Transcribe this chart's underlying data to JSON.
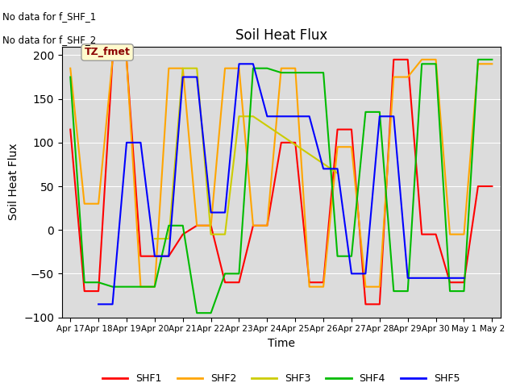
{
  "title": "Soil Heat Flux",
  "ylabel": "Soil Heat Flux",
  "xlabel": "Time",
  "ylim": [
    -100,
    210
  ],
  "yticks": [
    -100,
    -50,
    0,
    50,
    100,
    150,
    200
  ],
  "annotation_line1": "No data for f_SHF_1",
  "annotation_line2": "No data for f_SHF_2",
  "legend_box_text": "TZ_fmet",
  "colors": {
    "SHF1": "#FF0000",
    "SHF2": "#FFA500",
    "SHF3": "#CCCC00",
    "SHF4": "#00BB00",
    "SHF5": "#0000FF"
  },
  "xtick_labels": [
    "Apr 17",
    "Apr 18",
    "Apr 19",
    "Apr 20",
    "Apr 21",
    "Apr 22",
    "Apr 23",
    "Apr 24",
    "Apr 25",
    "Apr 26",
    "Apr 27",
    "Apr 28",
    "Apr 29",
    "Apr 30",
    "May 1",
    "May 2"
  ],
  "n_ticks": 16,
  "SHF1_x": [
    0,
    0.5,
    1,
    1.5,
    2,
    2.5,
    3,
    3.5,
    4,
    4.5,
    5,
    5.5,
    6,
    6.5,
    7,
    7.5,
    8,
    8.5,
    9,
    9.5,
    10,
    10.5,
    11,
    11.5,
    12,
    12.5,
    13,
    13.5,
    14,
    14.5,
    15
  ],
  "SHF1_y": [
    115,
    -70,
    -70,
    195,
    195,
    -30,
    -30,
    -30,
    -5,
    5,
    5,
    -60,
    -60,
    5,
    5,
    100,
    100,
    -60,
    -60,
    115,
    115,
    -85,
    -85,
    195,
    195,
    -5,
    -5,
    -60,
    -60,
    50,
    50
  ],
  "SHF2_x": [
    0,
    0.5,
    1,
    1.5,
    2,
    2.5,
    3,
    3.5,
    4,
    4.5,
    5,
    5.5,
    6,
    6.5,
    7,
    7.5,
    8,
    8.5,
    9,
    9.5,
    10,
    10.5,
    11,
    11.5,
    12,
    12.5,
    13,
    13.5,
    14,
    14.5,
    15
  ],
  "SHF2_y": [
    185,
    30,
    30,
    195,
    195,
    -65,
    -65,
    185,
    185,
    5,
    5,
    185,
    185,
    5,
    5,
    185,
    185,
    -65,
    -65,
    95,
    95,
    -65,
    -65,
    175,
    175,
    195,
    195,
    -5,
    -5,
    190,
    190
  ],
  "SHF3_x": [
    3,
    3.5,
    4,
    4.5,
    5,
    5.5,
    6,
    6.5,
    9.5
  ],
  "SHF3_y": [
    -10,
    -10,
    185,
    185,
    -5,
    -5,
    130,
    130,
    65
  ],
  "SHF4_x": [
    0,
    0.5,
    1,
    1.5,
    2,
    2.5,
    3,
    3.5,
    4,
    4.5,
    5,
    5.5,
    6,
    6.5,
    7,
    7.5,
    8,
    8.5,
    9,
    9.5,
    10,
    10.5,
    11,
    11.5,
    12,
    12.5,
    13,
    13.5,
    14,
    14.5,
    15
  ],
  "SHF4_y": [
    175,
    -60,
    -60,
    -65,
    -65,
    -65,
    -65,
    5,
    5,
    -95,
    -95,
    -50,
    -50,
    185,
    185,
    180,
    180,
    180,
    180,
    -30,
    -30,
    135,
    135,
    -70,
    -70,
    190,
    190,
    -70,
    -70,
    195,
    195
  ],
  "SHF5_x": [
    1,
    1.5,
    2,
    2.5,
    3,
    3.5,
    4,
    4.5,
    5,
    5.5,
    6,
    6.5,
    7,
    7.5,
    8,
    8.5,
    9,
    9.5,
    10,
    10.5,
    11,
    11.5,
    12,
    14
  ],
  "SHF5_y": [
    -85,
    -85,
    100,
    100,
    -30,
    -30,
    175,
    175,
    20,
    20,
    190,
    190,
    130,
    130,
    130,
    130,
    70,
    70,
    -50,
    -50,
    130,
    130,
    -55,
    -55
  ],
  "figsize": [
    6.4,
    4.8
  ],
  "dpi": 100
}
